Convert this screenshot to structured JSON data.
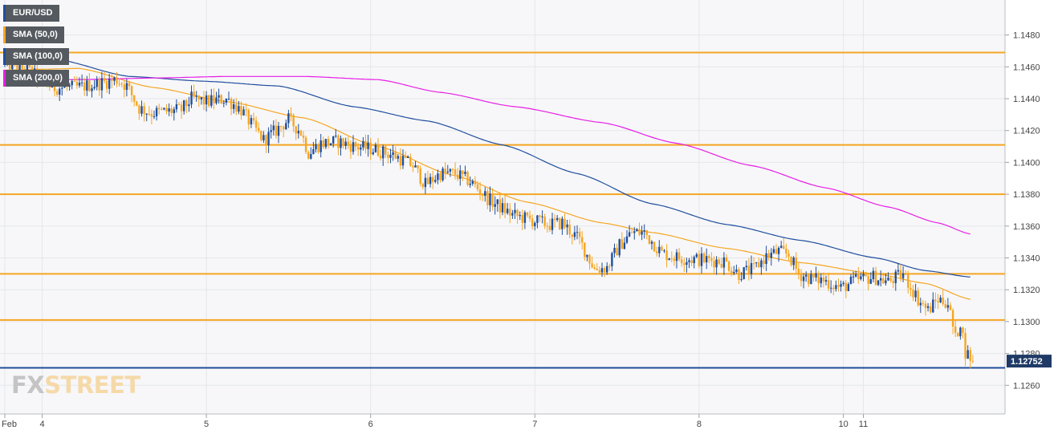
{
  "legend": [
    {
      "label": "EUR/USD",
      "color": "#1f4e9c"
    },
    {
      "label": "SMA (50,0)",
      "color": "#f5a623"
    },
    {
      "label": "SMA (100,0)",
      "color": "#1f4e9c"
    },
    {
      "label": "SMA (200,0)",
      "color": "#e61ee6"
    }
  ],
  "logo": {
    "part1": "FX",
    "part2": "STREET"
  },
  "chart_data": {
    "type": "candlestick",
    "title": "EUR/USD",
    "xlabel": "",
    "ylabel": "",
    "ylim": [
      1.1242,
      1.1502
    ],
    "y_ticks": [
      "1.1260",
      "1.1280",
      "1.1300",
      "1.1320",
      "1.1340",
      "1.1360",
      "1.1380",
      "1.1400",
      "1.1420",
      "1.1440",
      "1.1460",
      "1.1480"
    ],
    "x_ticks": [
      {
        "label": "Feb",
        "bar": 0
      },
      {
        "label": "4",
        "bar": 15
      },
      {
        "label": "5",
        "bar": 81
      },
      {
        "label": "6",
        "bar": 147
      },
      {
        "label": "7",
        "bar": 213
      },
      {
        "label": "8",
        "bar": 279
      },
      {
        "label": "10",
        "bar": 337
      },
      {
        "label": "11",
        "bar": 345
      }
    ],
    "grid": true,
    "legend_position": "top-left",
    "bar_count": 390,
    "current_price": {
      "label": "1.12752",
      "value": 1.12752
    },
    "horizontal_levels": [
      {
        "value": 1.1469,
        "color": "#f5a623"
      },
      {
        "value": 1.1411,
        "color": "#f5a623"
      },
      {
        "value": 1.138,
        "color": "#f5a623"
      },
      {
        "value": 1.133,
        "color": "#f5a623"
      },
      {
        "value": 1.1301,
        "color": "#f5a623"
      },
      {
        "value": 1.1271,
        "color": "#1f4e9c"
      }
    ],
    "price_path": [
      [
        0,
        1.1463
      ],
      [
        10,
        1.1458
      ],
      [
        20,
        1.1447
      ],
      [
        30,
        1.1447
      ],
      [
        40,
        1.145
      ],
      [
        46,
        1.1452
      ],
      [
        50,
        1.1448
      ],
      [
        55,
        1.1434
      ],
      [
        60,
        1.1431
      ],
      [
        66,
        1.1432
      ],
      [
        72,
        1.1433
      ],
      [
        76,
        1.144
      ],
      [
        82,
        1.1438
      ],
      [
        90,
        1.144
      ],
      [
        96,
        1.1433
      ],
      [
        100,
        1.1424
      ],
      [
        105,
        1.1414
      ],
      [
        110,
        1.142
      ],
      [
        115,
        1.1427
      ],
      [
        120,
        1.1419
      ],
      [
        123,
        1.1406
      ],
      [
        128,
        1.1412
      ],
      [
        135,
        1.1413
      ],
      [
        142,
        1.141
      ],
      [
        150,
        1.1408
      ],
      [
        158,
        1.1404
      ],
      [
        165,
        1.1398
      ],
      [
        170,
        1.1386
      ],
      [
        176,
        1.1393
      ],
      [
        182,
        1.1393
      ],
      [
        188,
        1.1388
      ],
      [
        196,
        1.1376
      ],
      [
        205,
        1.1367
      ],
      [
        212,
        1.1364
      ],
      [
        220,
        1.1361
      ],
      [
        225,
        1.1362
      ],
      [
        232,
        1.1351
      ],
      [
        238,
        1.1333
      ],
      [
        243,
        1.1334
      ],
      [
        248,
        1.1348
      ],
      [
        253,
        1.1356
      ],
      [
        258,
        1.1356
      ],
      [
        265,
        1.1343
      ],
      [
        272,
        1.134
      ],
      [
        280,
        1.1339
      ],
      [
        290,
        1.1338
      ],
      [
        296,
        1.133
      ],
      [
        302,
        1.1333
      ],
      [
        307,
        1.1341
      ],
      [
        312,
        1.1344
      ],
      [
        316,
        1.1342
      ],
      [
        320,
        1.133
      ],
      [
        325,
        1.1327
      ],
      [
        330,
        1.1326
      ],
      [
        337,
        1.1321
      ],
      [
        343,
        1.1326
      ],
      [
        350,
        1.1328
      ],
      [
        356,
        1.1325
      ],
      [
        362,
        1.133
      ],
      [
        368,
        1.1314
      ],
      [
        372,
        1.1307
      ],
      [
        376,
        1.1314
      ],
      [
        380,
        1.1312
      ],
      [
        383,
        1.1289
      ],
      [
        385,
        1.13
      ],
      [
        387,
        1.1281
      ],
      [
        390,
        1.1276
      ]
    ],
    "series": [
      {
        "name": "SMA (50,0)",
        "color": "#f5a623",
        "points": [
          [
            0,
            1.1458
          ],
          [
            30,
            1.1459
          ],
          [
            60,
            1.1447
          ],
          [
            90,
            1.1438
          ],
          [
            120,
            1.1428
          ],
          [
            150,
            1.141
          ],
          [
            180,
            1.1392
          ],
          [
            210,
            1.1375
          ],
          [
            240,
            1.1362
          ],
          [
            260,
            1.1356
          ],
          [
            290,
            1.1346
          ],
          [
            320,
            1.1337
          ],
          [
            350,
            1.133
          ],
          [
            370,
            1.1324
          ],
          [
            388,
            1.1314
          ]
        ]
      },
      {
        "name": "SMA (100,0)",
        "color": "#1f4e9c",
        "points": [
          [
            0,
            1.147
          ],
          [
            20,
            1.1465
          ],
          [
            50,
            1.1454
          ],
          [
            80,
            1.1451
          ],
          [
            110,
            1.1448
          ],
          [
            140,
            1.1435
          ],
          [
            170,
            1.1426
          ],
          [
            200,
            1.1411
          ],
          [
            230,
            1.1393
          ],
          [
            260,
            1.1374
          ],
          [
            290,
            1.1361
          ],
          [
            320,
            1.1351
          ],
          [
            350,
            1.134
          ],
          [
            370,
            1.1332
          ],
          [
            388,
            1.1328
          ]
        ]
      },
      {
        "name": "SMA (200,0)",
        "color": "#e61ee6",
        "points": [
          [
            0,
            1.1452
          ],
          [
            30,
            1.1452
          ],
          [
            60,
            1.1453
          ],
          [
            90,
            1.1454
          ],
          [
            120,
            1.1454
          ],
          [
            150,
            1.1452
          ],
          [
            175,
            1.1444
          ],
          [
            205,
            1.1435
          ],
          [
            240,
            1.1425
          ],
          [
            270,
            1.1412
          ],
          [
            300,
            1.1398
          ],
          [
            330,
            1.1384
          ],
          [
            355,
            1.1372
          ],
          [
            375,
            1.1362
          ],
          [
            388,
            1.1355
          ]
        ]
      }
    ]
  }
}
